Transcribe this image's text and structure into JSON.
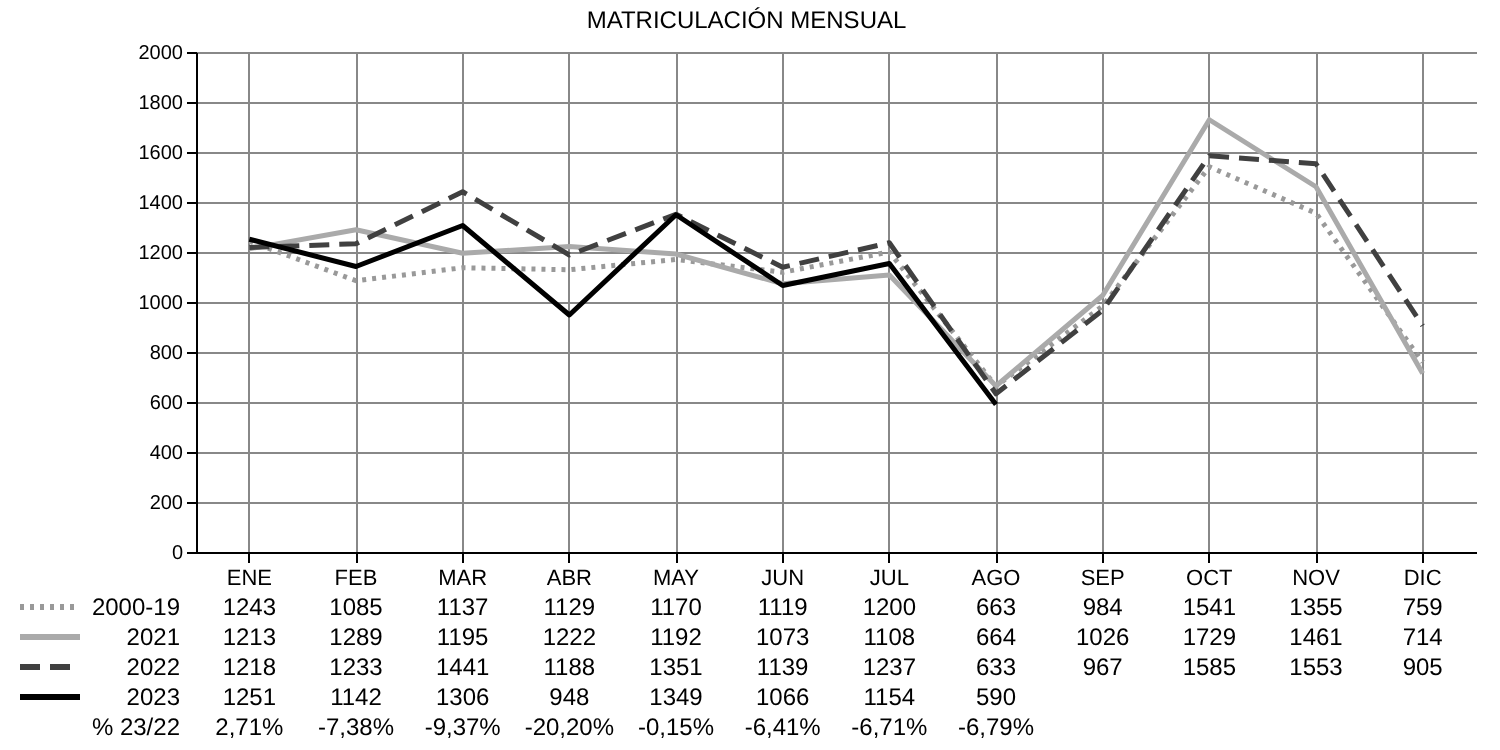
{
  "chart_data": {
    "type": "line",
    "title": "MATRICULACIÓN MENSUAL",
    "categories": [
      "ENE",
      "FEB",
      "MAR",
      "ABR",
      "MAY",
      "JUN",
      "JUL",
      "AGO",
      "SEP",
      "OCT",
      "NOV",
      "DIC"
    ],
    "series": [
      {
        "name": "2000-19",
        "color": "#999999",
        "line_style": "dotted",
        "values": [
          1243,
          1085,
          1137,
          1129,
          1170,
          1119,
          1200,
          663,
          984,
          1541,
          1355,
          759
        ]
      },
      {
        "name": "2021",
        "color": "#aaaaaa",
        "line_style": "solid",
        "values": [
          1213,
          1289,
          1195,
          1222,
          1192,
          1073,
          1108,
          664,
          1026,
          1729,
          1461,
          714
        ]
      },
      {
        "name": "2022",
        "color": "#404040",
        "line_style": "dashed",
        "values": [
          1218,
          1233,
          1441,
          1188,
          1351,
          1139,
          1237,
          633,
          967,
          1585,
          1553,
          905
        ]
      },
      {
        "name": "2023",
        "color": "#000000",
        "line_style": "solid",
        "values": [
          1251,
          1142,
          1306,
          948,
          1349,
          1066,
          1154,
          590,
          null,
          null,
          null,
          null
        ]
      }
    ],
    "ylim": [
      0,
      2000
    ],
    "yticks": [
      0,
      200,
      400,
      600,
      800,
      1000,
      1200,
      1400,
      1600,
      1800,
      2000
    ],
    "grid": true,
    "legend": "bottom",
    "data_labels": true,
    "annotations": [
      "% 23/22",
      "2,71%",
      "-7,38%",
      "-9,37%",
      "-20,20%",
      "-0,15%",
      "-6,41%",
      "-6,71%",
      "-6,79%"
    ]
  }
}
